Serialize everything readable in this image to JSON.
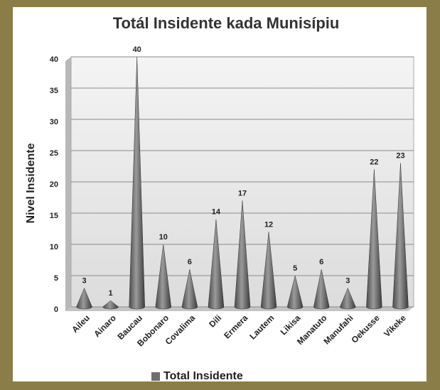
{
  "chart_data": {
    "type": "bar",
    "title": "Totál Insidente kada Munisípiu",
    "y_label": "Nivel Insidente",
    "categories": [
      "Aileu",
      "Ainaro",
      "Baucau",
      "Bobonaro",
      "Covalima",
      "Dili",
      "Ermera",
      "Lautem",
      "Likisa",
      "Manatuto",
      "Manufahi",
      "Oekusse",
      "Vikeke"
    ],
    "series": [
      {
        "name": "Total Insidente",
        "color": "#6e6e6e",
        "values": [
          3,
          1,
          40,
          10,
          6,
          14,
          17,
          12,
          5,
          6,
          3,
          22,
          23
        ]
      }
    ],
    "ylim": [
      0,
      40
    ],
    "yticks": [
      0,
      5,
      10,
      15,
      20,
      25,
      30,
      35,
      40
    ],
    "grid": true,
    "legend": "bottom"
  }
}
